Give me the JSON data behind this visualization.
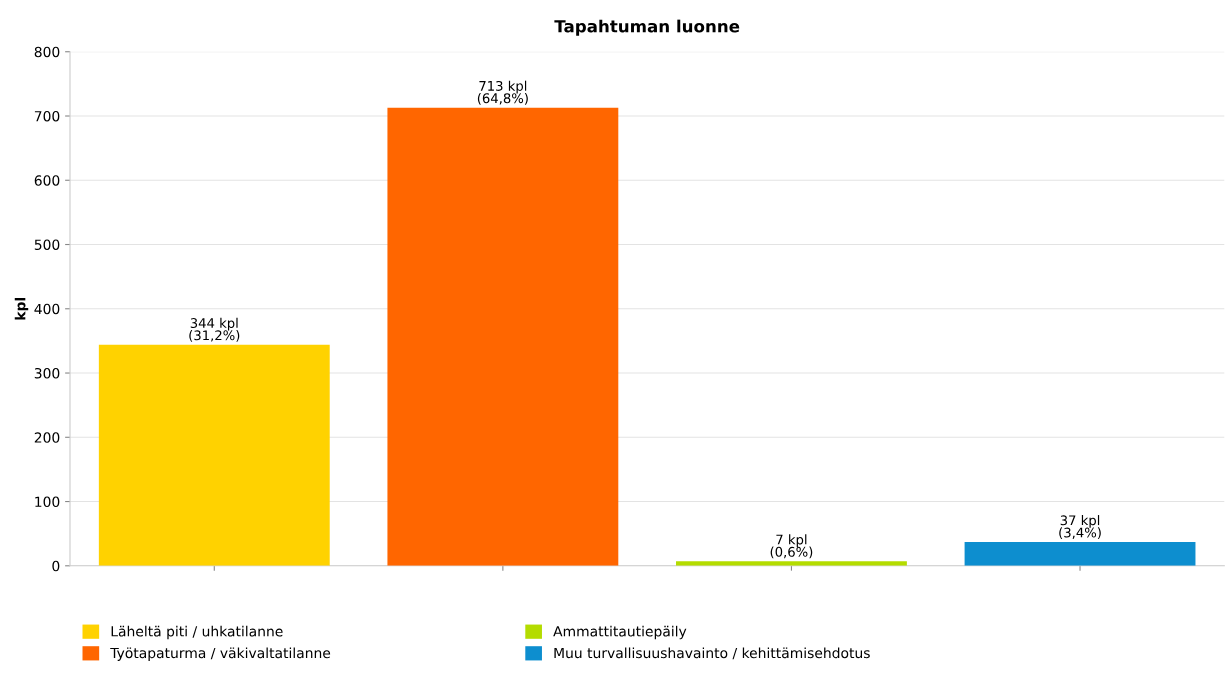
{
  "chart_data": {
    "type": "bar",
    "title": "Tapahtuman luonne",
    "ylabel": "kpl",
    "categories": [
      null,
      null,
      null,
      null
    ],
    "series": [
      {
        "name": "Läheltä piti / uhkatilanne",
        "color": "#ffd200",
        "values": [
          344,
          null,
          null,
          null
        ],
        "value_labels": [
          "344 kpl\n(31,2%)",
          null,
          null,
          null
        ]
      },
      {
        "name": "Työtapaturma / väkivaltatilanne",
        "color": "#ff6600",
        "values": [
          null,
          713,
          null,
          null
        ],
        "value_labels": [
          null,
          "713 kpl\n(64,8%)",
          null,
          null
        ]
      },
      {
        "name": "Ammattitautiepäily",
        "color": "#b4dc00",
        "values": [
          null,
          null,
          7,
          null
        ],
        "value_labels": [
          null,
          null,
          "7 kpl\n(0,6%)",
          null
        ]
      },
      {
        "name": "Muu turvallisuushavainto / kehittämisehdotus",
        "color": "#0d8ecf",
        "values": [
          null,
          null,
          null,
          37
        ],
        "value_labels": [
          null,
          null,
          null,
          "37 kpl\n(3,4%)"
        ]
      }
    ],
    "ylim": [
      0,
      800
    ],
    "yticks": [
      0,
      100,
      200,
      300,
      400,
      500,
      600,
      700,
      800
    ],
    "grid": "y",
    "legend": "bottom"
  }
}
